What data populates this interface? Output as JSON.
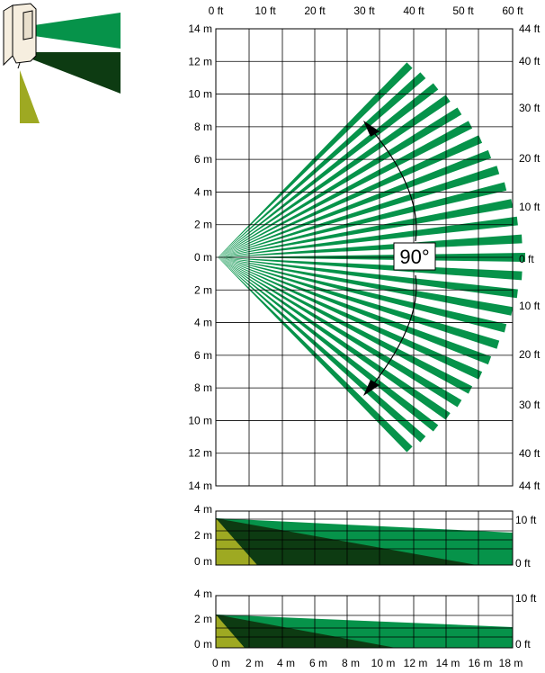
{
  "colors": {
    "beam": "#06934a",
    "dark": "#0d3b12",
    "olive": "#9ea922",
    "grid": "#000000",
    "device": "#f6eedf"
  },
  "top_axis_labels": [
    "0 ft",
    "10 ft",
    "20 ft",
    "30 ft",
    "40 ft",
    "50 ft",
    "60 ft"
  ],
  "left_axis_labels": [
    "14 m",
    "12 m",
    "10 m",
    "8 m",
    "6 m",
    "4 m",
    "2 m",
    "0 m",
    "2 m",
    "4 m",
    "6 m",
    "8 m",
    "10 m",
    "12 m",
    "14 m"
  ],
  "right_axis_labels": [
    "44 ft",
    "40 ft",
    "30 ft",
    "20 ft",
    "10 ft",
    "0 ft",
    "10 ft",
    "20 ft",
    "30 ft",
    "40 ft",
    "44 ft"
  ],
  "angle_label": "90°",
  "side_view_1": {
    "left_labels": [
      "4 m",
      "2 m",
      "0 m"
    ],
    "right_labels": [
      "10 ft",
      "0 ft"
    ]
  },
  "side_view_2": {
    "left_labels": [
      "4 m",
      "2 m",
      "0 m"
    ],
    "right_labels": [
      "10 ft",
      "0 ft"
    ]
  },
  "bottom_axis_labels": [
    "0 m",
    "2 m",
    "4 m",
    "6 m",
    "8 m",
    "10 m",
    "12 m",
    "14 m",
    "16 m",
    "18 m"
  ],
  "beam_count": 27
}
